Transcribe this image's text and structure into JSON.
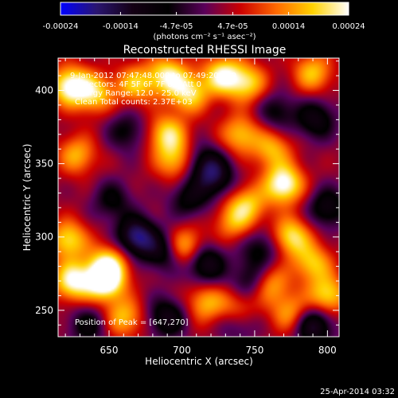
{
  "chart_data": {
    "type": "heatmap",
    "title": "Reconstructed RHESSI Image",
    "xlabel": "Heliocentric X (arcsec)",
    "ylabel": "Heliocentric Y (arcsec)",
    "xlim": [
      615,
      808
    ],
    "ylim": [
      232,
      422
    ],
    "x_ticks": [
      650,
      700,
      750,
      800
    ],
    "y_ticks": [
      250,
      300,
      350,
      400
    ],
    "x_tick_labels": [
      "650",
      "700",
      "750",
      "800"
    ],
    "y_tick_labels": [
      "250",
      "300",
      "350",
      "400"
    ],
    "colorbar": {
      "range": [
        -0.00024,
        0.00024
      ],
      "tick_values": [
        -0.00024,
        -0.00014,
        -4.7e-05,
        4.7e-05,
        0.00014,
        0.00024
      ],
      "tick_labels": [
        "-0.00024",
        "-0.00014",
        "-4.7e-05",
        "4.7e-05",
        "0.00014",
        "0.00024"
      ],
      "unit_label": "(photons cm⁻² s⁻¹ asec⁻²)",
      "colors": [
        "#0000ff",
        "#2a1570",
        "#140014",
        "#000000",
        "#5a005a",
        "#cc0000",
        "#ff6a00",
        "#ffd200",
        "#ffffff"
      ]
    },
    "annotations": {
      "time_range": "9-Jan-2012 07:47:48.000 to 07:49:20.000",
      "detectors": "Detectors: 4F 5F 6F 7F 8F, Att 0",
      "energy": "Energy Range: 12.0 - 25.0 keV",
      "clean": "Clean    Total counts: 2.37E+03",
      "peak": "Position of Peak = [647,270]"
    },
    "blobs": [
      {
        "x": 623,
        "y": 403,
        "v": 0.9
      },
      {
        "x": 640,
        "y": 398,
        "v": 0.65
      },
      {
        "x": 668,
        "y": 404,
        "v": 0.6
      },
      {
        "x": 690,
        "y": 410,
        "v": 0.75
      },
      {
        "x": 705,
        "y": 398,
        "v": 0.7
      },
      {
        "x": 728,
        "y": 410,
        "v": 0.8
      },
      {
        "x": 745,
        "y": 405,
        "v": 0.65
      },
      {
        "x": 790,
        "y": 412,
        "v": 0.6
      },
      {
        "x": 690,
        "y": 370,
        "v": 0.7
      },
      {
        "x": 695,
        "y": 352,
        "v": 0.55
      },
      {
        "x": 740,
        "y": 370,
        "v": 0.6
      },
      {
        "x": 762,
        "y": 360,
        "v": 0.55
      },
      {
        "x": 770,
        "y": 336,
        "v": 0.95
      },
      {
        "x": 745,
        "y": 322,
        "v": 0.6
      },
      {
        "x": 628,
        "y": 356,
        "v": 0.55
      },
      {
        "x": 622,
        "y": 298,
        "v": 0.7
      },
      {
        "x": 650,
        "y": 282,
        "v": 0.65
      },
      {
        "x": 625,
        "y": 270,
        "v": 0.85
      },
      {
        "x": 647,
        "y": 270,
        "v": 1.0
      },
      {
        "x": 660,
        "y": 245,
        "v": 0.6
      },
      {
        "x": 702,
        "y": 293,
        "v": 0.7
      },
      {
        "x": 716,
        "y": 255,
        "v": 0.55
      },
      {
        "x": 738,
        "y": 250,
        "v": 0.6
      },
      {
        "x": 775,
        "y": 300,
        "v": 0.75
      },
      {
        "x": 790,
        "y": 282,
        "v": 0.6
      },
      {
        "x": 760,
        "y": 268,
        "v": 0.6
      },
      {
        "x": 775,
        "y": 248,
        "v": 0.55
      },
      {
        "x": 800,
        "y": 260,
        "v": 0.7
      },
      {
        "x": 735,
        "y": 310,
        "v": 0.45
      }
    ],
    "dips": [
      {
        "x": 669,
        "y": 300,
        "v": -0.9
      },
      {
        "x": 688,
        "y": 290,
        "v": -0.55
      },
      {
        "x": 716,
        "y": 282,
        "v": -0.7
      },
      {
        "x": 716,
        "y": 350,
        "v": -0.5
      },
      {
        "x": 723,
        "y": 340,
        "v": -0.55
      },
      {
        "x": 792,
        "y": 380,
        "v": -0.55
      },
      {
        "x": 800,
        "y": 320,
        "v": -0.55
      },
      {
        "x": 748,
        "y": 270,
        "v": -0.5
      },
      {
        "x": 738,
        "y": 243,
        "v": -0.5
      },
      {
        "x": 790,
        "y": 240,
        "v": -0.75
      },
      {
        "x": 690,
        "y": 245,
        "v": -0.6
      },
      {
        "x": 652,
        "y": 325,
        "v": -0.4
      },
      {
        "x": 705,
        "y": 326,
        "v": -0.45
      },
      {
        "x": 662,
        "y": 372,
        "v": -0.4
      },
      {
        "x": 755,
        "y": 292,
        "v": -0.45
      },
      {
        "x": 765,
        "y": 385,
        "v": -0.4
      },
      {
        "x": 636,
        "y": 240,
        "v": -0.45
      }
    ]
  },
  "footer": {
    "timestamp": "25-Apr-2014 03:32"
  }
}
